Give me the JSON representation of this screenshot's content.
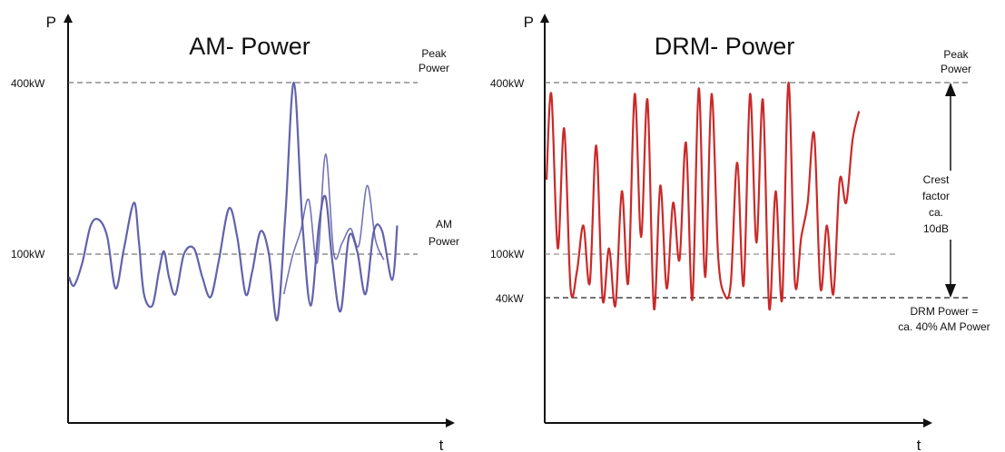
{
  "chart_data": [
    {
      "type": "line",
      "title": "AM- Power",
      "ylabel": "P",
      "xlabel": "t",
      "ylim": [
        0,
        460
      ],
      "xlim": [
        0,
        100
      ],
      "grid": false,
      "series_color": "#5a5aa8",
      "reference_lines": [
        {
          "value": 400,
          "tick_label": "400kW",
          "label_lines": [
            "Peak",
            "Power"
          ]
        },
        {
          "value": 100,
          "tick_label": "100kW",
          "label_lines": [
            "AM",
            "Power"
          ]
        }
      ],
      "series": [
        {
          "x": [
            0,
            1.5,
            4,
            6.5,
            9,
            11.5,
            14,
            16.5,
            19.5,
            21,
            22.5,
            25,
            27,
            28.5,
            30,
            32,
            34.5,
            37.5,
            40,
            42.5,
            45,
            48,
            50.5,
            53,
            55,
            57.5,
            60,
            62.5,
            65,
            67.5,
            70,
            72.5,
            75,
            77,
            79,
            81.5,
            84,
            86.5,
            89,
            91.5,
            94,
            97,
            98.5
          ],
          "y": [
            60,
            45,
            85,
            150,
            160,
            130,
            40,
            110,
            190,
            120,
            30,
            10,
            70,
            105,
            60,
            30,
            100,
            110,
            60,
            25,
            90,
            180,
            130,
            30,
            70,
            140,
            100,
            -15,
            175,
            400,
            160,
            10,
            150,
            200,
            90,
            0,
            130,
            105,
            30,
            140,
            140,
            55,
            150
          ]
        },
        {
          "x": [
            64.5,
            67,
            69.5,
            72,
            74.5,
            77,
            79.5,
            82,
            84.5,
            87,
            89.5,
            92,
            94.5
          ],
          "y": [
            30,
            95,
            140,
            195,
            85,
            275,
            100,
            120,
            145,
            115,
            220,
            125,
            90
          ]
        }
      ]
    },
    {
      "type": "line",
      "title": "DRM- Power",
      "ylabel": "P",
      "xlabel": "t",
      "ylim": [
        0,
        460
      ],
      "xlim": [
        0,
        100
      ],
      "grid": false,
      "series_color": "#c81e1e",
      "reference_lines": [
        {
          "value": 400,
          "tick_label": "400kW",
          "label_lines": [
            "Peak",
            "Power"
          ]
        },
        {
          "value": 100,
          "tick_label": "100kW",
          "label_lines": []
        },
        {
          "value": 40,
          "tick_label": "40kW",
          "label_lines": [
            "DRM Power =",
            "ca. 40% AM Power"
          ]
        }
      ],
      "crest_factor": {
        "label_lines": [
          "Crest",
          "factor",
          "ca.",
          "10dB"
        ],
        "from": 40,
        "to": 400
      },
      "series": [
        {
          "x": [
            0,
            1.5,
            3.5,
            5.5,
            7.5,
            9.5,
            11.5,
            13.5,
            15.5,
            17.5,
            19.5,
            21.5,
            23.5,
            25.5,
            27.5,
            29.5,
            31.5,
            33.5,
            35.5,
            37.5,
            39.5,
            41.5,
            43.5,
            45.5,
            47.5,
            49.5,
            51.5,
            53.5,
            55.5,
            57.5,
            59.5,
            61.5,
            63.5,
            65.5,
            67.5,
            69.5,
            71.5,
            73.5,
            75.5,
            77.5,
            79.5,
            81.5,
            83.5,
            85.5,
            87.5,
            89.5,
            91.5,
            93.5,
            95.5,
            97.5
          ],
          "y": [
            230,
            380,
            110,
            320,
            40,
            70,
            150,
            50,
            290,
            20,
            110,
            10,
            210,
            50,
            380,
            130,
            370,
            5,
            220,
            40,
            190,
            90,
            295,
            20,
            390,
            60,
            380,
            100,
            30,
            50,
            260,
            45,
            380,
            120,
            370,
            5,
            210,
            20,
            400,
            50,
            130,
            190,
            310,
            40,
            150,
            30,
            230,
            190,
            300,
            350
          ]
        }
      ]
    }
  ]
}
